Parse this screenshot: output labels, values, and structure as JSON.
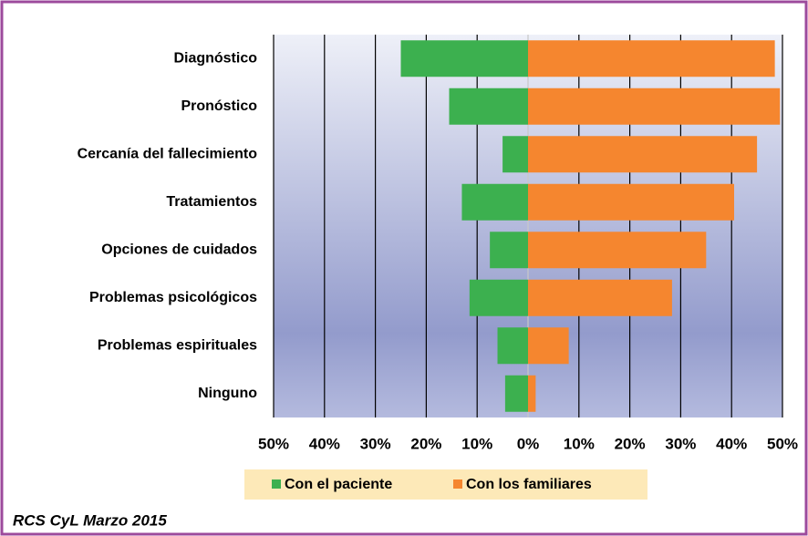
{
  "chart_data": {
    "type": "diverging-bar",
    "categories": [
      "Diagnóstico",
      "Pronóstico",
      "Cercanía del fallecimiento",
      "Tratamientos",
      "Opciones de cuidados",
      "Problemas psicológicos",
      "Problemas espirituales",
      "Ninguno"
    ],
    "series": [
      {
        "name": "Con el paciente",
        "color": "#3cb04f",
        "side": "left",
        "values": [
          25,
          15.5,
          5,
          13,
          7.5,
          11.5,
          6,
          4.5
        ]
      },
      {
        "name": "Con los familiares",
        "color": "#f5862f",
        "side": "right",
        "values": [
          48.5,
          49.5,
          45,
          40.5,
          35,
          28.3,
          8,
          1.5
        ]
      }
    ],
    "xlim": [
      -50,
      50
    ],
    "xticks": [
      {
        "value": -50,
        "label": "50%"
      },
      {
        "value": -40,
        "label": "40%"
      },
      {
        "value": -30,
        "label": "30%"
      },
      {
        "value": -20,
        "label": "20%"
      },
      {
        "value": -10,
        "label": "10%"
      },
      {
        "value": 0,
        "label": "0%"
      },
      {
        "value": 10,
        "label": "10%"
      },
      {
        "value": 20,
        "label": "20%"
      },
      {
        "value": 30,
        "label": "30%"
      },
      {
        "value": 40,
        "label": "40%"
      },
      {
        "value": 50,
        "label": "50%"
      }
    ],
    "grid": true,
    "source": "RCS CyL Marzo 2015"
  }
}
